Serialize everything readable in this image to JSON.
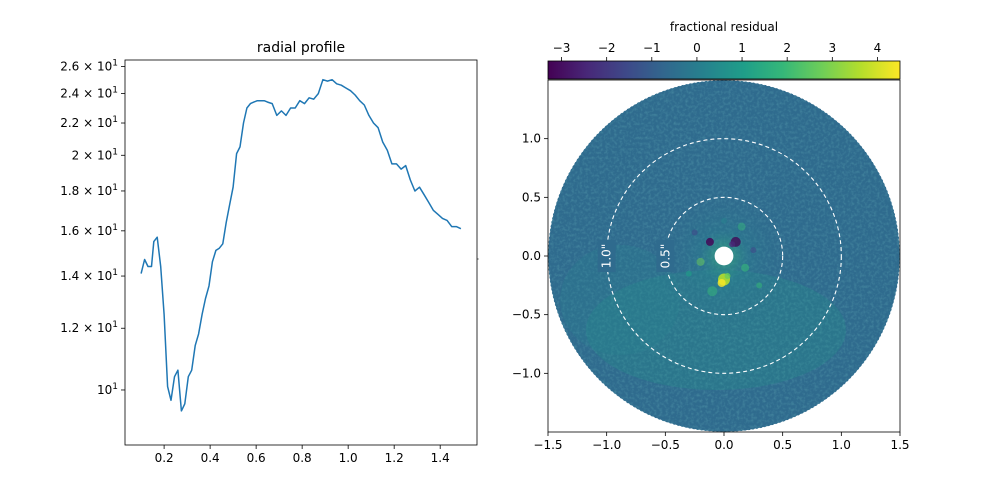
{
  "chart_data": [
    {
      "type": "line",
      "title": "radial profile",
      "xlabel": "",
      "ylabel": "",
      "yscale": "log",
      "xlim": [
        0.03,
        1.56
      ],
      "ylim": [
        8.5,
        26.5
      ],
      "xticks": [
        0.2,
        0.4,
        0.6,
        0.8,
        1.0,
        1.2,
        1.4
      ],
      "xtick_labels": [
        "0.2",
        "0.4",
        "0.6",
        "0.8",
        "1.0",
        "1.2",
        "1.4"
      ],
      "yticks": [
        10,
        12,
        14,
        16,
        18,
        20,
        22,
        24,
        26
      ],
      "ytick_labels": [
        "10^1",
        "1.2 × 10^1",
        "1.4 × 10^1",
        "1.6 × 10^1",
        "1.8 × 10^1",
        "2 × 10^1",
        "2.2 × 10^1",
        "2.4 × 10^1",
        "2.6 × 10^1"
      ],
      "line_color": "#1f77b4",
      "x": [
        0.1,
        0.115,
        0.13,
        0.145,
        0.155,
        0.17,
        0.185,
        0.2,
        0.215,
        0.23,
        0.245,
        0.26,
        0.275,
        0.29,
        0.305,
        0.32,
        0.335,
        0.35,
        0.365,
        0.38,
        0.395,
        0.41,
        0.425,
        0.44,
        0.455,
        0.47,
        0.485,
        0.5,
        0.515,
        0.53,
        0.545,
        0.56,
        0.575,
        0.59,
        0.605,
        0.62,
        0.635,
        0.65,
        0.67,
        0.69,
        0.71,
        0.73,
        0.75,
        0.77,
        0.79,
        0.81,
        0.83,
        0.85,
        0.87,
        0.89,
        0.91,
        0.93,
        0.95,
        0.97,
        0.99,
        1.01,
        1.03,
        1.05,
        1.07,
        1.09,
        1.11,
        1.13,
        1.15,
        1.17,
        1.19,
        1.21,
        1.23,
        1.25,
        1.27,
        1.29,
        1.31,
        1.33,
        1.35,
        1.37,
        1.39,
        1.41,
        1.43,
        1.45,
        1.47,
        1.49
      ],
      "y": [
        14.1,
        14.7,
        14.4,
        14.4,
        15.5,
        15.7,
        14.4,
        12.5,
        10.1,
        9.7,
        10.4,
        10.6,
        9.4,
        9.6,
        10.4,
        10.6,
        11.4,
        11.8,
        12.5,
        13.1,
        13.6,
        14.6,
        15.1,
        15.2,
        15.4,
        16.4,
        17.3,
        18.2,
        20.1,
        20.5,
        22.0,
        23.0,
        23.3,
        23.4,
        23.5,
        23.5,
        23.5,
        23.4,
        23.3,
        22.5,
        22.8,
        22.5,
        23.0,
        23.0,
        23.5,
        23.3,
        23.7,
        23.6,
        24.0,
        25.0,
        24.9,
        25.0,
        24.7,
        24.6,
        24.4,
        24.2,
        23.9,
        23.5,
        23.2,
        22.5,
        22.0,
        21.7,
        20.8,
        20.3,
        19.5,
        19.5,
        19.2,
        19.4,
        18.6,
        18.0,
        18.2,
        17.8,
        17.4,
        17.0,
        16.8,
        16.6,
        16.5,
        16.2,
        16.2,
        16.1
      ]
    },
    {
      "type": "heatmap",
      "xlim": [
        -1.5,
        1.5
      ],
      "ylim": [
        -1.5,
        1.5
      ],
      "xticks": [
        -1.5,
        -1.0,
        -0.5,
        0.0,
        0.5,
        1.0,
        1.5
      ],
      "xtick_labels": [
        "−1.5",
        "−1.0",
        "−0.5",
        "0.0",
        "0.5",
        "1.0",
        "1.5"
      ],
      "yticks": [
        -1.0,
        -0.5,
        0.0,
        0.5,
        1.0
      ],
      "ytick_labels": [
        "−1.0",
        "−0.5",
        "0.0",
        "0.5",
        "1.0"
      ],
      "outer_radius": 1.5,
      "inner_mask_radius": 0.08,
      "contour_radii": [
        0.5,
        1.0
      ],
      "contour_labels": [
        "0.5\"",
        "1.0\""
      ],
      "colorbar": {
        "label": "fractional residual",
        "min": -3.3,
        "max": 4.5,
        "ticks": [
          -3,
          -2,
          -1,
          0,
          1,
          2,
          3,
          4
        ],
        "tick_labels": [
          "−3",
          "−2",
          "−1",
          "0",
          "1",
          "2",
          "3",
          "4"
        ],
        "colormap": "viridis",
        "stops": [
          "#440154",
          "#482878",
          "#3e4989",
          "#31688e",
          "#26828e",
          "#1f9e89",
          "#35b779",
          "#6ece58",
          "#b5de2b",
          "#fde725"
        ]
      },
      "background_color": "#2f6b8e"
    }
  ]
}
